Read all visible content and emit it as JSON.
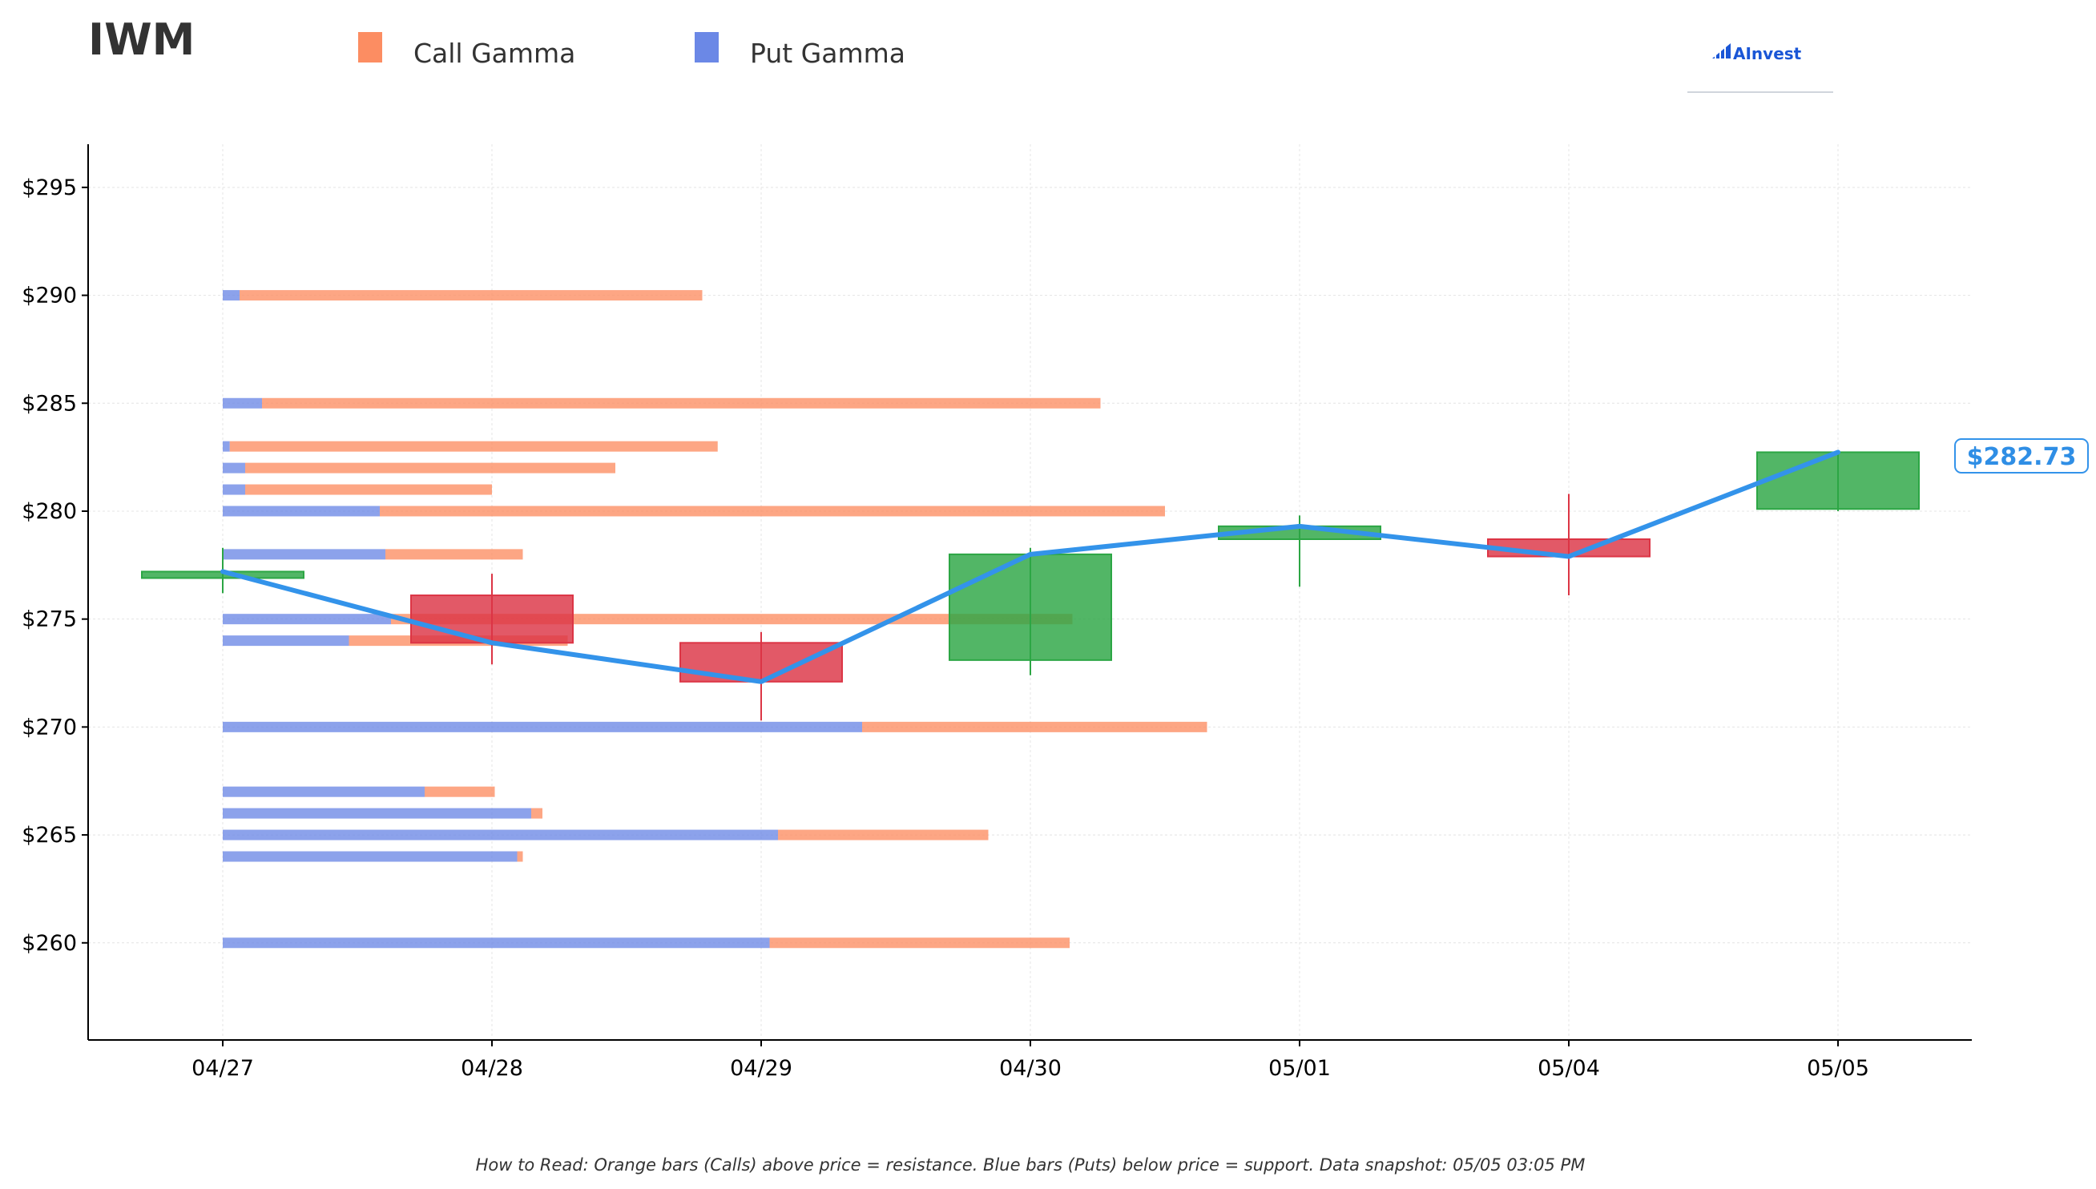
{
  "title": "IWM",
  "legend": [
    {
      "label": "Call Gamma",
      "color": "#fc8d62"
    },
    {
      "label": "Put Gamma",
      "color": "#6b88e6"
    }
  ],
  "brand": {
    "text": "AInvest",
    "icon": "ainvest-logo-icon"
  },
  "note": "How to Read: Orange bars (Calls) above price = resistance. Blue bars (Puts) below price = support. Data snapshot: 05/05 03:05 PM",
  "current_price_label": "$282.73",
  "colors": {
    "call": "#fc8d62",
    "put": "#6b88e6",
    "up": "#2ca644",
    "down": "#dc3545",
    "price_line": "#3393ea"
  },
  "chart_data": {
    "type": "candlestick",
    "ylim": [
      255.5,
      297
    ],
    "y_ticks": [
      260,
      265,
      270,
      275,
      280,
      285,
      290,
      295
    ],
    "y_tick_labels": [
      "$260",
      "$265",
      "$270",
      "$275",
      "$280",
      "$285",
      "$290",
      "$295"
    ],
    "categories": [
      "04/27",
      "04/28",
      "04/29",
      "04/30",
      "05/01",
      "05/04",
      "05/05"
    ],
    "candles": [
      {
        "date": "04/27",
        "open": 276.9,
        "high": 278.3,
        "low": 276.2,
        "close": 277.2
      },
      {
        "date": "04/28",
        "open": 276.1,
        "high": 277.1,
        "low": 272.9,
        "close": 273.9
      },
      {
        "date": "04/29",
        "open": 273.9,
        "high": 274.4,
        "low": 270.3,
        "close": 272.1
      },
      {
        "date": "04/30",
        "open": 273.1,
        "high": 278.3,
        "low": 272.4,
        "close": 278.0
      },
      {
        "date": "05/01",
        "open": 278.7,
        "high": 279.8,
        "low": 276.5,
        "close": 279.3
      },
      {
        "date": "05/04",
        "open": 278.7,
        "high": 280.8,
        "low": 276.1,
        "close": 277.9
      },
      {
        "date": "05/05",
        "open": 280.1,
        "high": 282.7,
        "low": 280.0,
        "close": 282.73
      }
    ],
    "gamma_strikes": [
      {
        "strike": 290,
        "put": 0.06,
        "call": 1.65
      },
      {
        "strike": 285,
        "put": 0.14,
        "call": 2.99
      },
      {
        "strike": 283,
        "put": 0.025,
        "call": 1.74
      },
      {
        "strike": 282,
        "put": 0.08,
        "call": 1.32
      },
      {
        "strike": 281,
        "put": 0.08,
        "call": 0.88
      },
      {
        "strike": 280,
        "put": 0.56,
        "call": 2.8
      },
      {
        "strike": 278,
        "put": 0.58,
        "call": 0.49
      },
      {
        "strike": 275,
        "put": 0.6,
        "call": 2.43
      },
      {
        "strike": 274,
        "put": 0.45,
        "call": 0.78
      },
      {
        "strike": 270,
        "put": 2.28,
        "call": 1.23
      },
      {
        "strike": 267,
        "put": 0.72,
        "call": 0.25
      },
      {
        "strike": 266,
        "put": 1.1,
        "call": 0.04
      },
      {
        "strike": 265,
        "put": 1.98,
        "call": 0.75
      },
      {
        "strike": 264,
        "put": 1.05,
        "call": 0.02
      },
      {
        "strike": 260,
        "put": 1.95,
        "call": 1.07
      }
    ],
    "price_line": [
      277.2,
      273.9,
      272.1,
      278.0,
      279.3,
      277.9,
      282.73
    ],
    "grid": true
  }
}
